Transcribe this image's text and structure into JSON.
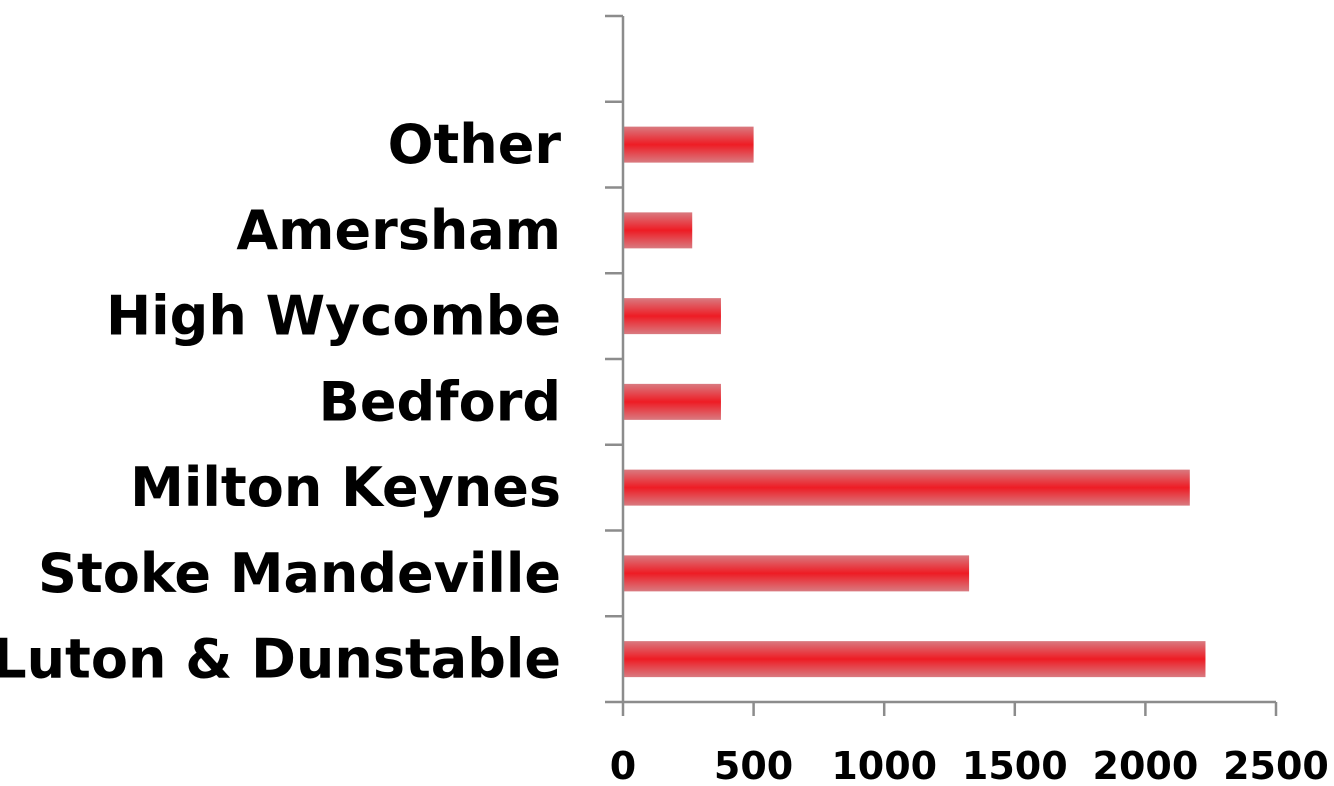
{
  "chart_data": {
    "type": "bar",
    "orientation": "horizontal",
    "categories": [
      "Luton & Dunstable",
      "Stoke Mandeville",
      "Milton Keynes",
      "Bedford",
      "High Wycombe",
      "Amersham",
      "Other",
      ""
    ],
    "values": [
      2230,
      1325,
      2170,
      375,
      375,
      265,
      500,
      null
    ],
    "xlim": [
      0,
      2500
    ],
    "x_ticks": [
      "0",
      "500",
      "1000",
      "1500",
      "2000",
      "2500"
    ],
    "title": "",
    "xlabel": "",
    "ylabel": "",
    "grid": false,
    "legend": "none",
    "colors": {
      "bar_center": "#ee1c24",
      "bar_edge": "#d97a80",
      "axis": "#8c8c8c",
      "text": "#000000"
    }
  }
}
